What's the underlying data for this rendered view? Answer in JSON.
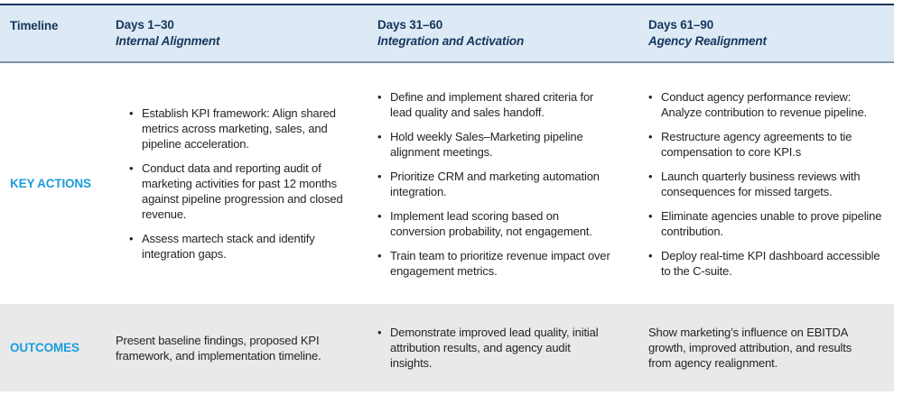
{
  "colors": {
    "header_background": "#ddeaf6",
    "top_border": "#16365d",
    "header_divider": "#7e94aa",
    "header_text_navy": "#16365d",
    "accent_cyan_label": "#1b9dd9",
    "body_text": "#262324",
    "outcomes_background": "#e9e9ea"
  },
  "table": {
    "header": {
      "row_label": "Timeline",
      "columns": [
        {
          "days": "Days 1–30",
          "phase": "Internal Alignment"
        },
        {
          "days": "Days 31–60",
          "phase": "Integration and Activation"
        },
        {
          "days": "Days 61–90",
          "phase": "Agency Realignment"
        }
      ]
    },
    "key_actions": {
      "row_label": "KEY ACTIONS",
      "columns": [
        {
          "bullets": [
            "Establish KPI framework: Align shared metrics across marketing, sales, and pipeline acceleration.",
            "Conduct data and reporting audit of marketing activities for past 12 months against pipeline progression and closed revenue.",
            "Assess martech stack and identify integration gaps."
          ]
        },
        {
          "bullets": [
            "Define and implement shared criteria for lead quality and sales handoff.",
            "Hold weekly Sales–Marketing pipeline alignment meetings.",
            "Prioritize CRM and marketing automation integration.",
            "Implement lead scoring based on conversion probability, not engagement.",
            "Train team to prioritize revenue impact over engagement metrics."
          ]
        },
        {
          "bullets": [
            "Conduct agency performance review: Analyze contribution to revenue pipeline.",
            "Restructure agency agreements to tie compensation to core KPI.s",
            "Launch quarterly business reviews with consequences for missed targets.",
            "Eliminate agencies unable to prove pipeline contribution.",
            "Deploy real-time KPI dashboard accessible to the C-suite."
          ]
        }
      ]
    },
    "outcomes": {
      "row_label": "OUTCOMES",
      "columns": [
        {
          "text": "Present baseline findings, proposed KPI framework, and implementation timeline.",
          "bulleted": false
        },
        {
          "bullets": [
            "Demonstrate improved lead quality, initial attribution results, and agency audit insights."
          ],
          "bulleted": true
        },
        {
          "text": "Show marketing’s influence on EBITDA growth, improved attribution, and results from agency realignment.",
          "bulleted": false
        }
      ]
    }
  }
}
